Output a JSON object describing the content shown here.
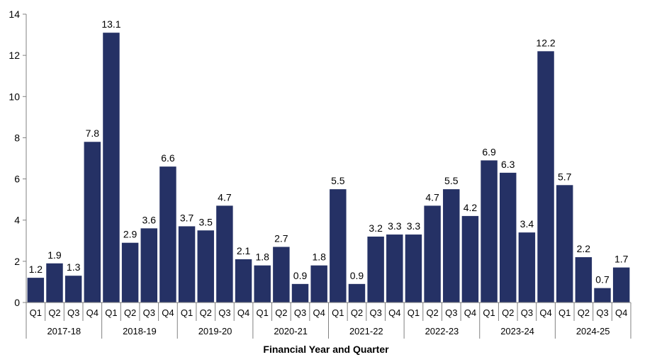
{
  "chart_data": {
    "type": "bar",
    "title": "",
    "xlabel": "Financial Year and Quarter",
    "ylabel": "",
    "ylim": [
      0,
      14
    ],
    "yticks": [
      0,
      2,
      4,
      6,
      8,
      10,
      12,
      14
    ],
    "grid": false,
    "legend": "none",
    "bar_color": "#253165",
    "groups": [
      {
        "name": "2017-18",
        "categories": [
          "Q1",
          "Q2",
          "Q3",
          "Q4"
        ],
        "values": [
          1.2,
          1.9,
          1.3,
          7.8
        ]
      },
      {
        "name": "2018-19",
        "categories": [
          "Q1",
          "Q2",
          "Q3",
          "Q4"
        ],
        "values": [
          13.1,
          2.9,
          3.6,
          6.6
        ]
      },
      {
        "name": "2019-20",
        "categories": [
          "Q1",
          "Q2",
          "Q3",
          "Q4"
        ],
        "values": [
          3.7,
          3.5,
          4.7,
          2.1
        ]
      },
      {
        "name": "2020-21",
        "categories": [
          "Q1",
          "Q2",
          "Q3",
          "Q4"
        ],
        "values": [
          1.8,
          2.7,
          0.9,
          1.8
        ]
      },
      {
        "name": "2021-22",
        "categories": [
          "Q1",
          "Q2",
          "Q3",
          "Q4"
        ],
        "values": [
          5.5,
          0.9,
          3.2,
          3.3
        ]
      },
      {
        "name": "2022-23",
        "categories": [
          "Q1",
          "Q2",
          "Q3",
          "Q4"
        ],
        "values": [
          3.3,
          4.7,
          5.5,
          4.2
        ]
      },
      {
        "name": "2023-24",
        "categories": [
          "Q1",
          "Q2",
          "Q3",
          "Q4"
        ],
        "values": [
          6.9,
          6.3,
          3.4,
          12.2
        ]
      },
      {
        "name": "2024-25",
        "categories": [
          "Q1",
          "Q2",
          "Q3",
          "Q4"
        ],
        "values": [
          5.7,
          2.2,
          0.7,
          1.7
        ]
      }
    ]
  }
}
